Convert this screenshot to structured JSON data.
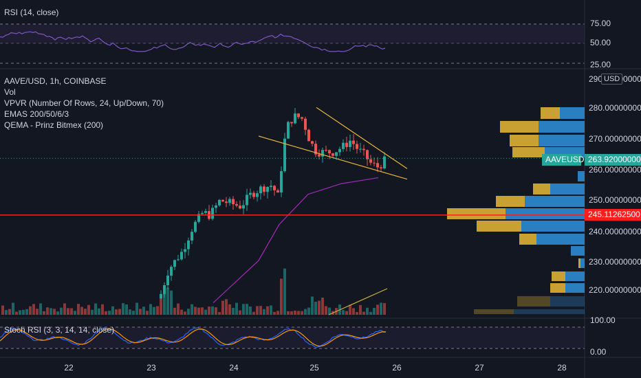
{
  "panels": {
    "rsi": {
      "label": "RSI (14, close)",
      "ticks": [
        "75.00",
        "50.00",
        "25.00"
      ]
    },
    "stoch": {
      "label": "Stoch RSI (3, 3, 14, 14, close)",
      "ticks": [
        "100.00",
        "0.00"
      ]
    }
  },
  "main": {
    "title": "AAVE/USD, 1h, COINBASE",
    "indicators": [
      "Vol",
      "VPVR (Number Of Rows, 24, Up/Down, 70)",
      "EMAS 200/50/6/3",
      "QEMA - Prinz Bitmex (200)"
    ],
    "currency": "USD",
    "price_ticks": [
      "290.00000000",
      "280.00000000",
      "270.00000000",
      "260.00000000",
      "250.00000000",
      "240.00000000",
      "230.00000000",
      "220.00000000"
    ],
    "symbol_tag": "AAVEUSD",
    "current_price": "263.92000000",
    "hline_price": "245.11262500"
  },
  "time_axis": [
    "22",
    "23",
    "24",
    "25",
    "26",
    "27",
    "28"
  ],
  "colors": {
    "up": "#26a69a",
    "down": "#ef5350",
    "hline": "#ff1e1e",
    "ema": "#9c27b0",
    "trend": "#e8b33a",
    "vp_up": "#2a7fc0",
    "vp_down": "#c9a032"
  },
  "chart_data": {
    "type": "candlestick",
    "symbol": "AAVE/USD",
    "timeframe": "1h",
    "ylim": [
      214,
      290
    ],
    "x_axis_days": [
      "22",
      "23",
      "24",
      "25",
      "26",
      "27",
      "28"
    ],
    "hline": 245.11,
    "last_price": 263.92,
    "trend_lines": [
      {
        "from": [
          "24.3",
          271.3
        ],
        "to": [
          "26.1",
          257.0
        ]
      },
      {
        "from": [
          "25",
          280.8
        ],
        "to": [
          "26.1",
          260.5
        ]
      }
    ],
    "ema_points": [
      [
        "23.75",
        216
      ],
      [
        "24.3",
        230
      ],
      [
        "24.55",
        242
      ],
      [
        "24.9",
        252
      ],
      [
        "25.3",
        255.5
      ],
      [
        "25.75",
        257.5
      ]
    ]
  }
}
